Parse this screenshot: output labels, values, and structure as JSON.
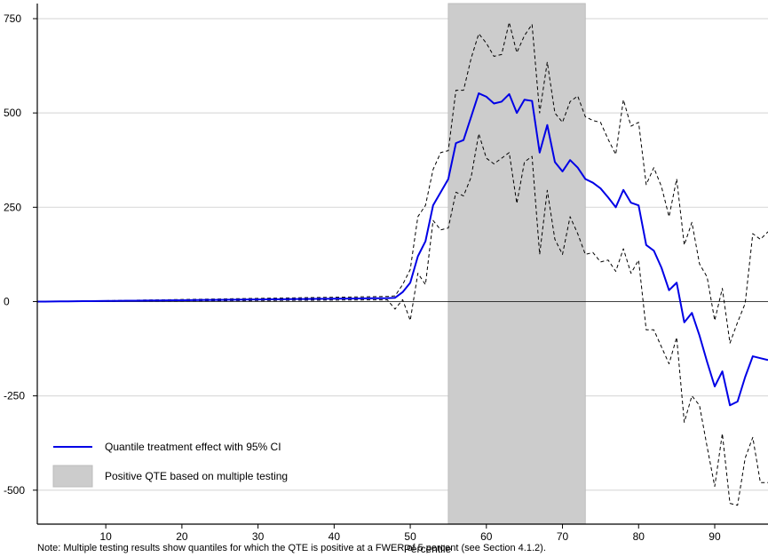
{
  "chart_data": {
    "type": "line",
    "title": "",
    "xlabel": "Percentile",
    "ylabel": "",
    "xlim": [
      1,
      97
    ],
    "ylim": [
      -590,
      790
    ],
    "x_ticks": [
      10,
      20,
      30,
      40,
      50,
      60,
      70,
      80,
      90
    ],
    "x_tick_labels": [
      "10",
      "20",
      "30",
      "40",
      "50",
      "60",
      "70",
      "80",
      "90"
    ],
    "y_ticks": [
      -500,
      -250,
      0,
      250,
      500,
      750
    ],
    "y_tick_labels": [
      "-500",
      "-250",
      "0",
      "250",
      "500",
      "750"
    ],
    "grid": "horizontal",
    "legend_position": "bottom-left",
    "shaded_region": {
      "x_start": 55,
      "x_end": 73,
      "label": "Positive QTE based on multiple testing",
      "color": "#cccccc"
    },
    "colors": {
      "qte": "#0000e6",
      "ci": "#000000",
      "zero_line": "#000000",
      "grid": "#dcdcdc",
      "band": "#cccccc"
    },
    "x": [
      1,
      2,
      3,
      4,
      5,
      6,
      7,
      8,
      9,
      10,
      11,
      12,
      13,
      14,
      15,
      16,
      17,
      18,
      19,
      20,
      21,
      22,
      23,
      24,
      25,
      26,
      27,
      28,
      29,
      30,
      31,
      32,
      33,
      34,
      35,
      36,
      37,
      38,
      39,
      40,
      41,
      42,
      43,
      44,
      45,
      46,
      47,
      48,
      49,
      50,
      51,
      52,
      53,
      54,
      55,
      56,
      57,
      58,
      59,
      60,
      61,
      62,
      63,
      64,
      65,
      66,
      67,
      68,
      69,
      70,
      71,
      72,
      73,
      74,
      75,
      76,
      77,
      78,
      79,
      80,
      81,
      82,
      83,
      84,
      85,
      86,
      87,
      88,
      89,
      90,
      91,
      92,
      93,
      94,
      95,
      96,
      97
    ],
    "series": [
      {
        "name": "Quantile treatment effect with 95% CI",
        "style": "solid",
        "values": [
          0,
          0,
          0.2,
          0.4,
          0.6,
          0.8,
          1,
          1.2,
          1.4,
          1.6,
          1.8,
          2,
          2.2,
          2.4,
          2.6,
          2.8,
          3,
          3.2,
          3.4,
          3.6,
          3.8,
          4,
          4.2,
          4.4,
          4.6,
          4.8,
          5,
          5.2,
          5.4,
          5.6,
          5.8,
          6,
          6.2,
          6.4,
          6.6,
          6.8,
          7,
          7.2,
          7.4,
          7.6,
          7.8,
          8,
          8.2,
          8.4,
          8.6,
          8.8,
          9,
          10,
          25,
          50,
          120,
          160,
          255,
          290,
          325,
          420,
          428,
          490,
          552,
          543,
          525,
          530,
          550,
          500,
          535,
          532,
          395,
          468,
          370,
          345,
          375,
          355,
          325,
          315,
          300,
          276,
          250,
          296,
          262,
          255,
          150,
          135,
          90,
          30,
          50,
          -55,
          -30,
          -90,
          -160,
          -225,
          -185,
          -275,
          -265,
          -200,
          -145,
          -150,
          -155
        ]
      },
      {
        "name": "",
        "style": "dashed",
        "values": [
          0,
          0,
          0.3,
          0.6,
          0.9,
          1.2,
          1.5,
          1.8,
          2.1,
          2.4,
          2.7,
          3,
          3.3,
          3.6,
          3.9,
          4.2,
          4.5,
          4.8,
          5.1,
          5.4,
          5.7,
          6,
          6.3,
          6.6,
          6.9,
          7.2,
          7.5,
          7.8,
          8.1,
          8.4,
          8.7,
          9,
          9.3,
          9.6,
          9.9,
          10.2,
          10.5,
          10.8,
          11.1,
          11.4,
          11.7,
          12,
          12.3,
          12.6,
          12.9,
          13.2,
          13.5,
          15,
          45,
          85,
          225,
          255,
          350,
          395,
          400,
          560,
          560,
          645,
          710,
          685,
          650,
          655,
          740,
          660,
          705,
          735,
          500,
          635,
          500,
          475,
          530,
          545,
          490,
          480,
          475,
          430,
          390,
          535,
          465,
          475,
          310,
          355,
          305,
          225,
          325,
          150,
          210,
          100,
          65,
          -50,
          35,
          -110,
          -55,
          -5,
          180,
          165,
          185
        ]
      },
      {
        "name": "",
        "style": "dashed",
        "values": [
          0,
          0,
          0.1,
          0.2,
          0.3,
          0.4,
          0.5,
          0.6,
          0.7,
          0.8,
          0.9,
          1,
          1.1,
          1.2,
          1.3,
          1.4,
          1.5,
          1.6,
          1.7,
          1.8,
          1.9,
          2,
          2.1,
          2.2,
          2.3,
          2.4,
          2.5,
          2.6,
          2.7,
          2.8,
          2.9,
          3,
          3.1,
          3.2,
          3.3,
          3.4,
          3.5,
          3.6,
          3.7,
          3.8,
          3.9,
          4,
          4.1,
          4.2,
          4.3,
          4.4,
          4.5,
          -20,
          5,
          -50,
          75,
          45,
          215,
          190,
          195,
          290,
          280,
          330,
          445,
          380,
          365,
          380,
          395,
          260,
          370,
          385,
          125,
          295,
          165,
          125,
          225,
          180,
          125,
          130,
          105,
          110,
          80,
          140,
          75,
          110,
          -75,
          -75,
          -120,
          -165,
          -95,
          -320,
          -250,
          -275,
          -385,
          -490,
          -350,
          -535,
          -540,
          -415,
          -360,
          -480,
          -480
        ]
      }
    ]
  },
  "note": "Note: Multiple testing results show quantiles for which the QTE is positive at a FWER of 5 percent (see Section 4.1.2)."
}
